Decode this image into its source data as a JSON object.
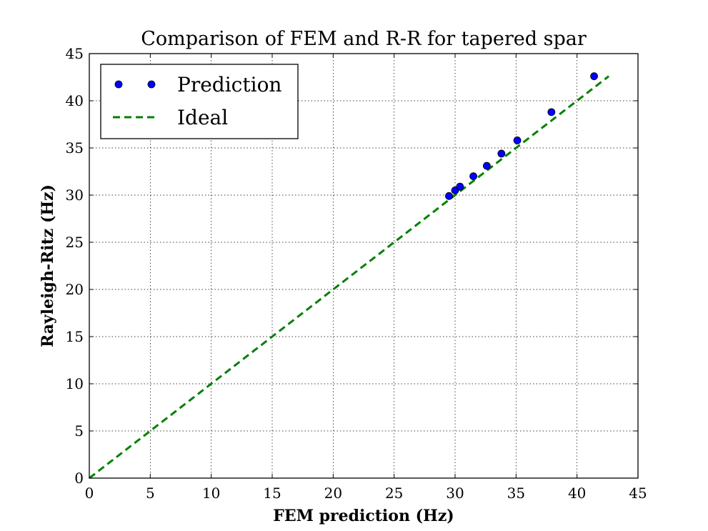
{
  "chart_data": {
    "type": "scatter",
    "title": "Comparison of FEM and R-R for tapered spar",
    "xlabel": "FEM prediction (Hz)",
    "ylabel": "Rayleigh-Ritz (Hz)",
    "xlim": [
      0,
      45
    ],
    "ylim": [
      0,
      45
    ],
    "xticks": [
      0,
      5,
      10,
      15,
      20,
      25,
      30,
      35,
      40,
      45
    ],
    "yticks": [
      0,
      5,
      10,
      15,
      20,
      25,
      30,
      35,
      40,
      45
    ],
    "grid": true,
    "legend_position": "top-left",
    "series": [
      {
        "name": "Prediction",
        "kind": "markers",
        "color": "#0000ff",
        "x": [
          29.5,
          30.0,
          30.4,
          31.5,
          32.6,
          33.8,
          35.1,
          37.9,
          41.4
        ],
        "y": [
          29.9,
          30.5,
          30.9,
          32.0,
          33.1,
          34.4,
          35.8,
          38.8,
          42.6
        ]
      },
      {
        "name": "Ideal",
        "kind": "dashed-line",
        "color": "#008000",
        "x": [
          0,
          42.6
        ],
        "y": [
          0,
          42.6
        ]
      }
    ]
  }
}
